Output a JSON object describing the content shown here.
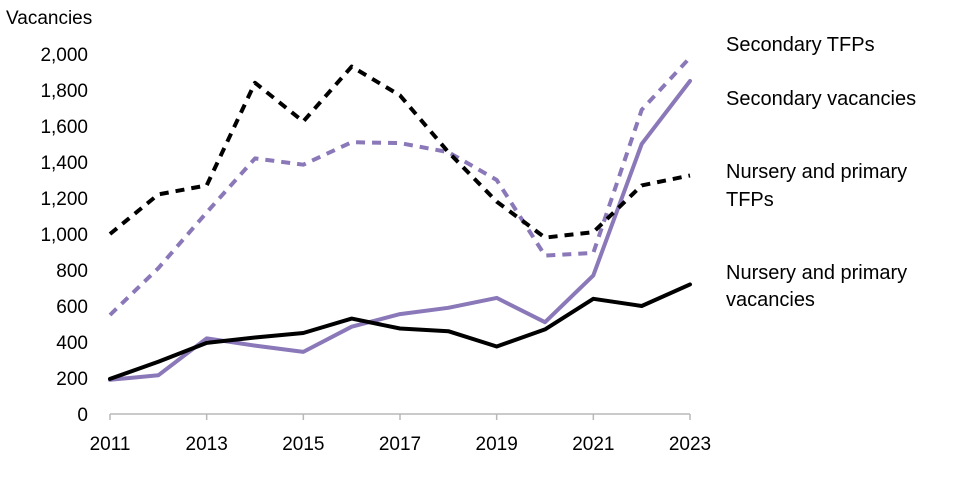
{
  "chart_data": {
    "type": "line",
    "ylabel": "Vacancies",
    "xlabel": "",
    "x": [
      2011,
      2012,
      2013,
      2014,
      2015,
      2016,
      2017,
      2018,
      2019,
      2020,
      2021,
      2022,
      2023
    ],
    "xticks": [
      "2011",
      "2013",
      "2015",
      "2017",
      "2019",
      "2021",
      "2023"
    ],
    "yticks": [
      "0",
      "200",
      "400",
      "600",
      "800",
      "1,000",
      "1,200",
      "1,400",
      "1,600",
      "1,800",
      "2,000"
    ],
    "ylim": [
      0,
      2000
    ],
    "grid": false,
    "legend": "right, labels beside line ends",
    "series": [
      {
        "name": "Secondary TFPs",
        "color": "#8a78b8",
        "style": "dashed",
        "values": [
          550,
          810,
          1120,
          1420,
          1385,
          1510,
          1505,
          1455,
          1300,
          880,
          895,
          1690,
          1980
        ]
      },
      {
        "name": "Secondary vacancies",
        "color": "#8a78b8",
        "style": "solid",
        "values": [
          190,
          215,
          420,
          380,
          345,
          485,
          555,
          590,
          645,
          510,
          770,
          1500,
          1850
        ]
      },
      {
        "name": "Nursery and primary TFPs",
        "color": "#000000",
        "style": "dashed",
        "values": [
          1000,
          1220,
          1270,
          1840,
          1625,
          1930,
          1770,
          1455,
          1180,
          980,
          1010,
          1270,
          1325
        ]
      },
      {
        "name": "Nursery and primary vacancies",
        "color": "#000000",
        "style": "solid",
        "values": [
          195,
          290,
          395,
          425,
          450,
          530,
          475,
          460,
          375,
          470,
          640,
          600,
          720
        ]
      }
    ],
    "labels": {
      "secondary_tfps": [
        "Secondary TFPs"
      ],
      "secondary_vacancies": [
        "Secondary vacancies"
      ],
      "primary_tfps": [
        "Nursery and primary",
        "TFPs"
      ],
      "primary_vacancies": [
        "Nursery and primary",
        "vacancies"
      ]
    }
  }
}
